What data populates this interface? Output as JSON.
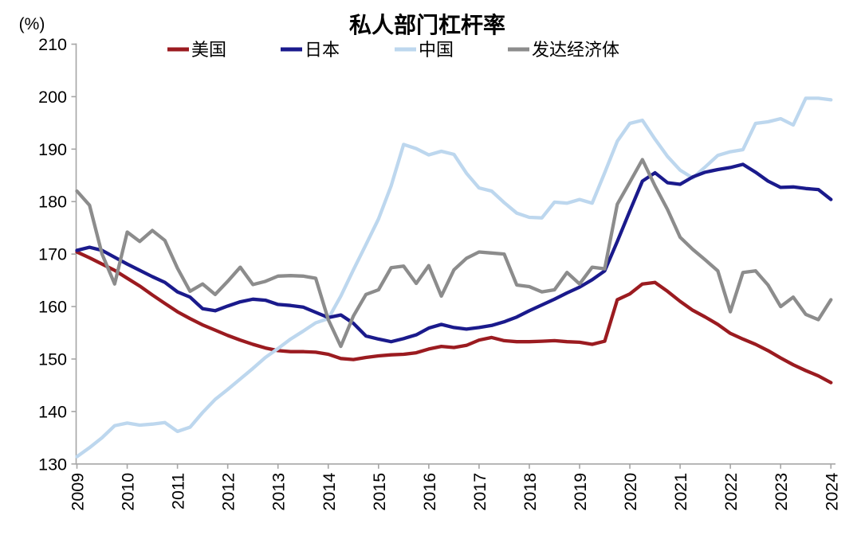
{
  "chart_data": {
    "type": "line",
    "title": "私人部门杠杆率",
    "unit_label": "(%)",
    "x_tick_labels": [
      "2009",
      "2010",
      "2011",
      "2012",
      "2013",
      "2014",
      "2015",
      "2016",
      "2017",
      "2018",
      "2019",
      "2020",
      "2021",
      "2022",
      "2023",
      "2024"
    ],
    "x_start": 2009,
    "x_step_years": 0.25,
    "y_ticks": [
      130,
      140,
      150,
      160,
      170,
      180,
      190,
      200,
      210
    ],
    "ylim": [
      130,
      210
    ],
    "grid": false,
    "legend_position": "top",
    "axis_color": "#a6a6a6",
    "series": [
      {
        "key": "us",
        "name": "美国",
        "color": "#9b1b20",
        "values": [
          170.4,
          169.3,
          168.1,
          166.9,
          165.4,
          163.9,
          162.2,
          160.6,
          159.0,
          157.7,
          156.5,
          155.5,
          154.5,
          153.6,
          152.8,
          152.1,
          151.6,
          151.4,
          151.4,
          151.3,
          150.9,
          150.1,
          149.9,
          150.3,
          150.6,
          150.8,
          150.9,
          151.2,
          151.9,
          152.4,
          152.2,
          152.6,
          153.6,
          154.1,
          153.5,
          153.3,
          153.3,
          153.4,
          153.5,
          153.3,
          153.2,
          152.8,
          153.4,
          161.3,
          162.4,
          164.3,
          164.6,
          162.9,
          161.0,
          159.3,
          158.0,
          156.6,
          154.9,
          153.8,
          152.8,
          151.6,
          150.2,
          148.9,
          147.8,
          146.8,
          145.5
        ]
      },
      {
        "key": "japan",
        "name": "日本",
        "color": "#1a1a8c",
        "values": [
          170.7,
          171.3,
          170.7,
          169.4,
          168.1,
          166.9,
          165.7,
          164.6,
          162.8,
          161.8,
          159.6,
          159.2,
          160.1,
          160.9,
          161.4,
          161.2,
          160.4,
          160.2,
          159.9,
          158.9,
          157.9,
          158.4,
          156.8,
          154.4,
          153.8,
          153.3,
          153.9,
          154.6,
          155.9,
          156.6,
          156.0,
          155.7,
          156.0,
          156.4,
          157.1,
          158.0,
          159.2,
          160.3,
          161.4,
          162.6,
          163.7,
          165.1,
          166.8,
          172.4,
          178.2,
          183.9,
          185.5,
          183.6,
          183.3,
          184.7,
          185.6,
          186.1,
          186.5,
          187.1,
          185.6,
          183.9,
          182.7,
          182.8,
          182.5,
          182.3,
          180.4
        ]
      },
      {
        "key": "china",
        "name": "中国",
        "color": "#bdd7ee",
        "values": [
          131.4,
          133.1,
          135.0,
          137.3,
          137.8,
          137.4,
          137.6,
          137.9,
          136.2,
          137.0,
          139.8,
          142.3,
          144.2,
          146.2,
          148.2,
          150.3,
          152.0,
          153.8,
          155.3,
          156.9,
          157.7,
          162.0,
          167.0,
          171.8,
          176.7,
          183.0,
          190.9,
          190.1,
          188.9,
          189.6,
          189.0,
          185.4,
          182.6,
          182.0,
          179.8,
          177.8,
          177.0,
          176.9,
          179.9,
          179.7,
          180.4,
          179.7,
          185.5,
          191.5,
          194.9,
          195.5,
          191.9,
          188.6,
          186.0,
          184.5,
          186.6,
          188.8,
          189.5,
          189.9,
          194.9,
          195.2,
          195.8,
          194.6,
          199.7,
          199.7,
          199.4
        ]
      },
      {
        "key": "developed",
        "name": "发达经济体",
        "color": "#8c8c8c",
        "values": [
          182.0,
          179.3,
          170.0,
          164.3,
          174.2,
          172.4,
          174.5,
          172.6,
          167.3,
          162.9,
          164.3,
          162.3,
          164.8,
          167.5,
          164.2,
          164.8,
          165.8,
          165.9,
          165.8,
          165.4,
          157.5,
          152.4,
          158.2,
          162.3,
          163.2,
          167.4,
          167.7,
          164.4,
          167.8,
          162.0,
          167.0,
          169.2,
          170.4,
          170.2,
          170.0,
          164.1,
          163.8,
          162.8,
          163.2,
          166.5,
          164.3,
          167.5,
          167.2,
          179.5,
          183.7,
          188.0,
          183.0,
          178.5,
          173.2,
          170.9,
          168.9,
          166.8,
          159.0,
          166.5,
          166.8,
          164.1,
          160.0,
          161.8,
          158.5,
          157.5,
          161.3
        ]
      }
    ]
  }
}
